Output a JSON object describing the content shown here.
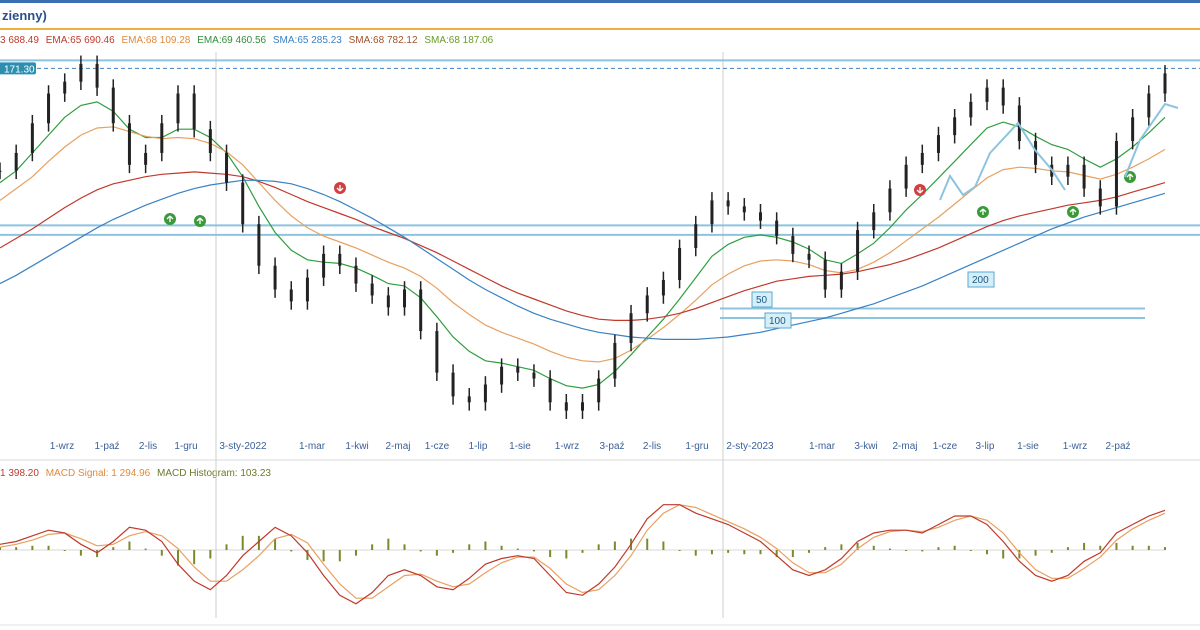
{
  "header": {
    "title": "zienny)"
  },
  "legend": [
    {
      "text": "3 688.49",
      "color": "#c0392b"
    },
    {
      "text": "EMA:65 690.46",
      "color": "#c0392b"
    },
    {
      "text": "EMA:68 109.28",
      "color": "#e08a3c"
    },
    {
      "text": "EMA:69 460.56",
      "color": "#2f8f3a"
    },
    {
      "text": "SMA:65 285.23",
      "color": "#3a82c4"
    },
    {
      "text": "SMA:68 782.12",
      "color": "#a0522d"
    },
    {
      "text": "SMA:68 187.06",
      "color": "#6a9a2a"
    }
  ],
  "macd_legend": [
    {
      "text": "1 398.20",
      "color": "#c0392b"
    },
    {
      "text": "MACD Signal: 1 294.96",
      "color": "#e08a3c"
    },
    {
      "text": "MACD Histogram: 103.23",
      "color": "#6b7a2a"
    }
  ],
  "price_marker": "171.30",
  "colors": {
    "ema_red": "#c0392b",
    "ema_orange": "#e8a060",
    "ema_green": "#2e9e3e",
    "sma_blue": "#3a82c4",
    "sma_brown": "#9a6a3a",
    "sma_olive": "#7aa030",
    "resistance": "#8cc4e0",
    "hist": "#7a8a2a",
    "candle": "#222222",
    "signal_up": "#3a9a3a",
    "signal_down": "#d04040"
  },
  "chart_data": {
    "type": "line",
    "x_ticks": [
      "1-wrz",
      "1-paź",
      "2-lis",
      "1-gru",
      "3-sty-2022",
      "1-mar",
      "1-kwi",
      "2-maj",
      "1-cze",
      "1-lip",
      "1-sie",
      "1-wrz",
      "3-paź",
      "2-lis",
      "1-gru",
      "2-sty-2023",
      "1-mar",
      "3-kwi",
      "2-maj",
      "1-cze",
      "3-lip",
      "1-sie",
      "1-wrz",
      "2-paź"
    ],
    "ma_labels": [
      "50",
      "100",
      "200"
    ],
    "series": [
      {
        "name": "price",
        "values": [
          62000,
          63500,
          66000,
          68500,
          69500,
          71000,
          69000,
          66000,
          62500,
          63500,
          66000,
          68500,
          65500,
          63500,
          61000,
          57500,
          54000,
          52000,
          51000,
          53000,
          55000,
          54000,
          52500,
          51500,
          50500,
          52000,
          48500,
          45000,
          43000,
          42500,
          44000,
          45500,
          45000,
          44500,
          42500,
          41800,
          42500,
          44500,
          47500,
          50000,
          51500,
          52800,
          55500,
          57500,
          59500,
          59000,
          58500,
          57800,
          56500,
          55000,
          54500,
          52000,
          53500,
          57000,
          58500,
          60500,
          62500,
          63500,
          65000,
          66500,
          67800,
          69000,
          67500,
          64500,
          62500,
          61500,
          62500,
          60500,
          59000,
          64500,
          66500,
          68500,
          70200
        ]
      },
      {
        "name": "ema_fast",
        "values": [
          61000,
          62000,
          63500,
          65000,
          66500,
          67500,
          67800,
          67000,
          65500,
          64800,
          64800,
          65500,
          65500,
          64800,
          63500,
          61500,
          59000,
          56800,
          55300,
          54500,
          54300,
          54200,
          53800,
          53200,
          52500,
          52300,
          51300,
          49700,
          48000,
          46800,
          46000,
          45800,
          45500,
          45200,
          44500,
          43900,
          43700,
          44000,
          45100,
          46500,
          48000,
          49500,
          51200,
          53000,
          54800,
          55800,
          56400,
          56600,
          56400,
          56000,
          55400,
          54500,
          54200,
          55000,
          55900,
          57200,
          58700,
          60000,
          61400,
          62800,
          64200,
          65600,
          66100,
          65700,
          64900,
          64200,
          63800,
          63000,
          62300,
          63000,
          64000,
          65200,
          66500
        ]
      },
      {
        "name": "ema_mid",
        "values": [
          59500,
          60500,
          61500,
          62800,
          64000,
          65000,
          65600,
          65700,
          65300,
          64900,
          64700,
          64800,
          64700,
          64300,
          63600,
          62500,
          61000,
          59500,
          58200,
          57200,
          56500,
          56000,
          55500,
          54900,
          54300,
          53800,
          53100,
          52100,
          50900,
          49900,
          49000,
          48400,
          47900,
          47400,
          46800,
          46300,
          46000,
          45900,
          46200,
          46900,
          47800,
          48800,
          49900,
          51100,
          52400,
          53300,
          54000,
          54400,
          54500,
          54400,
          54100,
          53600,
          53400,
          53700,
          54300,
          55100,
          56100,
          57100,
          58100,
          59200,
          60300,
          61400,
          62100,
          62300,
          62200,
          62000,
          61900,
          61600,
          61300,
          61700,
          62300,
          63000,
          63800
        ]
      },
      {
        "name": "ema_slow",
        "values": [
          55500,
          56300,
          57100,
          58000,
          58900,
          59700,
          60400,
          60900,
          61200,
          61500,
          61700,
          61800,
          61900,
          61800,
          61700,
          61500,
          61100,
          60600,
          60000,
          59400,
          58900,
          58400,
          57900,
          57300,
          56800,
          56300,
          55700,
          55100,
          54400,
          53700,
          53000,
          52300,
          51700,
          51200,
          50700,
          50200,
          49800,
          49500,
          49400,
          49400,
          49500,
          49700,
          50000,
          50400,
          50900,
          51400,
          51900,
          52300,
          52700,
          52900,
          53100,
          53200,
          53300,
          53500,
          53800,
          54100,
          54500,
          55000,
          55500,
          56100,
          56700,
          57300,
          57800,
          58200,
          58500,
          58800,
          59100,
          59300,
          59500,
          59800,
          60200,
          60600,
          61000
        ]
      },
      {
        "name": "sma_long",
        "values": [
          52500,
          53200,
          54000,
          54800,
          55600,
          56400,
          57200,
          57900,
          58500,
          59100,
          59600,
          60100,
          60500,
          60800,
          61000,
          61200,
          61200,
          61100,
          60900,
          60500,
          60000,
          59400,
          58700,
          58000,
          57200,
          56400,
          55500,
          54600,
          53700,
          52800,
          52000,
          51300,
          50600,
          50000,
          49500,
          49100,
          48700,
          48400,
          48200,
          48000,
          47900,
          47800,
          47800,
          47800,
          47900,
          48000,
          48200,
          48400,
          48700,
          49000,
          49300,
          49600,
          50000,
          50400,
          50800,
          51300,
          51800,
          52300,
          52900,
          53500,
          54100,
          54700,
          55300,
          55900,
          56500,
          57100,
          57600,
          58100,
          58500,
          58900,
          59300,
          59700,
          60100
        ]
      }
    ],
    "macd": {
      "macd": [
        200,
        300,
        500,
        700,
        600,
        200,
        -100,
        300,
        800,
        700,
        300,
        -500,
        -1100,
        -1400,
        -900,
        -200,
        300,
        800,
        500,
        -100,
        -900,
        -1600,
        -1900,
        -1500,
        -900,
        -700,
        -900,
        -1300,
        -1400,
        -1000,
        -500,
        -300,
        -200,
        -300,
        -900,
        -1500,
        -1600,
        -1200,
        -600,
        200,
        1100,
        1600,
        1600,
        1300,
        1100,
        900,
        600,
        300,
        -200,
        -700,
        -900,
        -700,
        -300,
        300,
        600,
        700,
        700,
        600,
        900,
        1200,
        1200,
        900,
        300,
        -400,
        -900,
        -1100,
        -900,
        -400,
        -100,
        600,
        900,
        1200,
        1400
      ],
      "signal": [
        100,
        200,
        350,
        550,
        600,
        400,
        150,
        200,
        500,
        650,
        500,
        50,
        -600,
        -1100,
        -1100,
        -700,
        -200,
        400,
        550,
        250,
        -500,
        -1200,
        -1700,
        -1700,
        -1300,
        -900,
        -850,
        -1100,
        -1300,
        -1200,
        -800,
        -450,
        -250,
        -250,
        -650,
        -1200,
        -1500,
        -1400,
        -900,
        -200,
        700,
        1300,
        1600,
        1500,
        1250,
        1000,
        750,
        450,
        50,
        -450,
        -800,
        -800,
        -500,
        50,
        450,
        650,
        700,
        650,
        800,
        1050,
        1200,
        1050,
        600,
        -100,
        -700,
        -1000,
        -1000,
        -650,
        -250,
        350,
        750,
        1050,
        1300
      ],
      "histogram": [
        100,
        100,
        150,
        150,
        0,
        -200,
        -250,
        100,
        300,
        50,
        -200,
        -550,
        -500,
        -300,
        200,
        500,
        500,
        400,
        -50,
        -350,
        -400,
        -400,
        -200,
        200,
        400,
        200,
        -50,
        -200,
        -100,
        200,
        300,
        150,
        50,
        -50,
        -250,
        -300,
        -100,
        200,
        300,
        400,
        400,
        300,
        0,
        -200,
        -150,
        -100,
        -150,
        -150,
        -250,
        -250,
        -100,
        100,
        200,
        250,
        150,
        50,
        0,
        -50,
        100,
        150,
        0,
        -150,
        -300,
        -300,
        -200,
        -100,
        100,
        250,
        150,
        250,
        150,
        150,
        100
      ],
      "yrange": [
        -2400,
        2400
      ]
    },
    "ylim": [
      40000,
      72000
    ],
    "resistance_levels": [
      71300,
      57400,
      56600,
      50400,
      49600
    ]
  }
}
